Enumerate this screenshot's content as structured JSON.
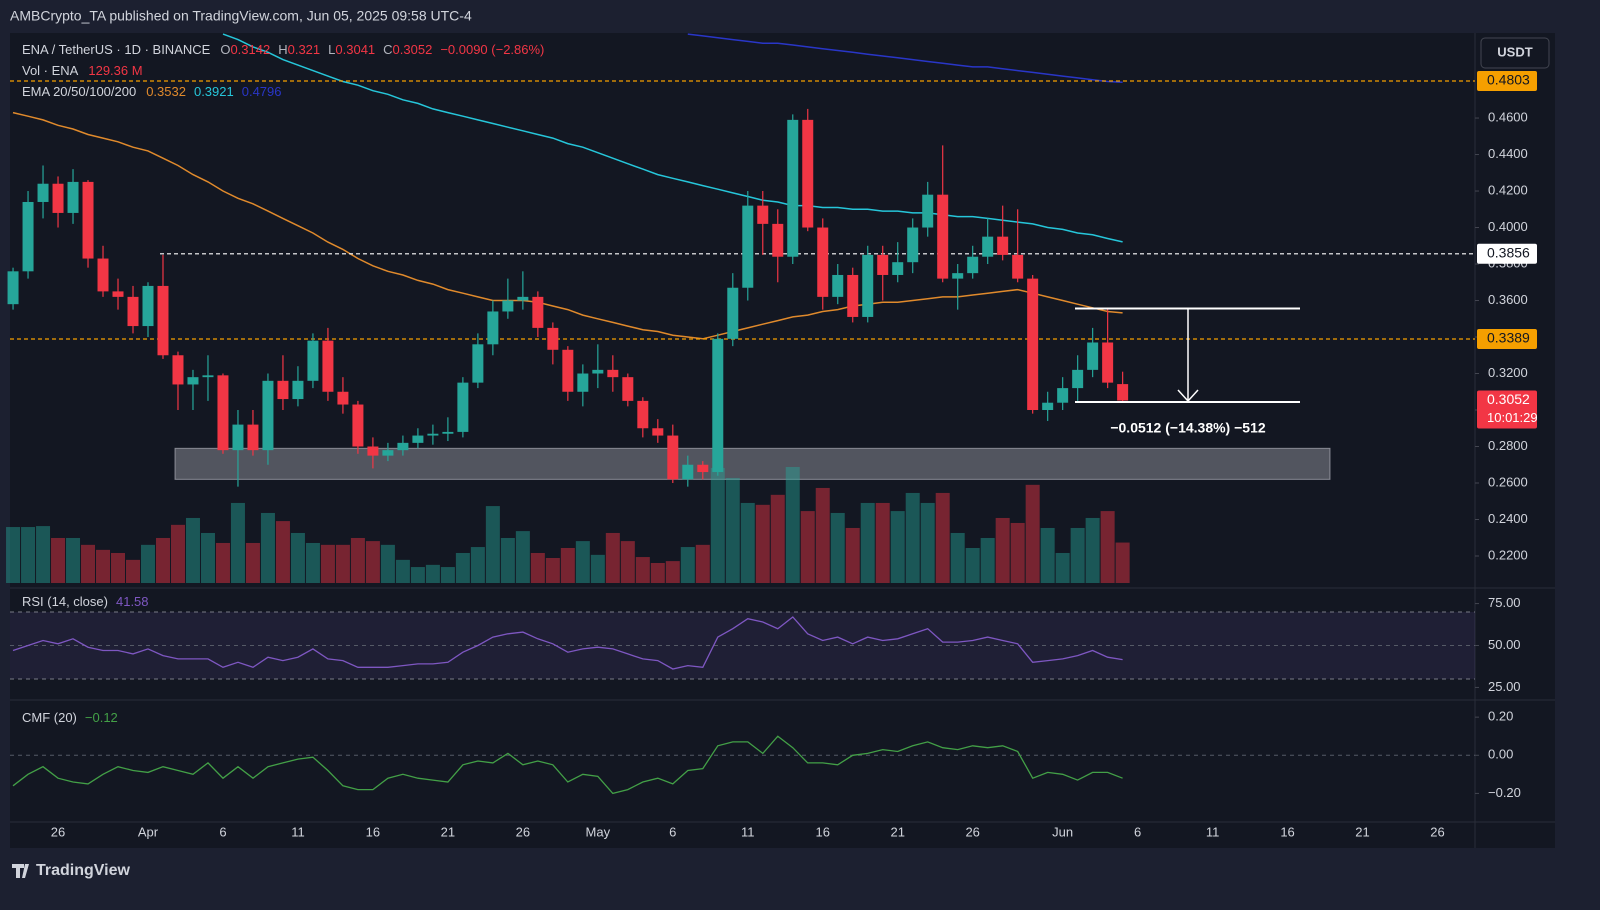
{
  "header": "AMBCrypto_TA published on TradingView.com, Jun 05, 2025 09:58 UTC-4",
  "currency_button": "USDT",
  "footer_logo": "TradingView",
  "chart_data": [
    {
      "type": "candlestick",
      "title": "ENA / TetherUS · 1D · BINANCE",
      "ohlc_labels": [
        "O",
        "H",
        "L",
        "C"
      ],
      "change_label": "−0.0090 (−2.86%)",
      "up_color": "#26a69a",
      "down_color": "#f23645",
      "candles": {
        "open": [
          0.358,
          0.376,
          0.414,
          0.424,
          0.408,
          0.425,
          0.383,
          0.365,
          0.362,
          0.346,
          0.368,
          0.33,
          0.314,
          0.318,
          0.319,
          0.278,
          0.292,
          0.278,
          0.316,
          0.306,
          0.316,
          0.338,
          0.31,
          0.303,
          0.28,
          0.275,
          0.278,
          0.282,
          0.286,
          0.287,
          0.288,
          0.315,
          0.336,
          0.354,
          0.36,
          0.362,
          0.345,
          0.333,
          0.31,
          0.32,
          0.322,
          0.318,
          0.305,
          0.29,
          0.286,
          0.262,
          0.27,
          0.266,
          0.339,
          0.367,
          0.412,
          0.402,
          0.384,
          0.459,
          0.4,
          0.362,
          0.374,
          0.351,
          0.385,
          0.374,
          0.381,
          0.4,
          0.418,
          0.372,
          0.375,
          0.384,
          0.395,
          0.385,
          0.372,
          0.3,
          0.304,
          0.312,
          0.322,
          0.337,
          0.3142
        ],
        "high": [
          0.378,
          0.42,
          0.434,
          0.428,
          0.432,
          0.426,
          0.39,
          0.372,
          0.368,
          0.37,
          0.385,
          0.332,
          0.322,
          0.33,
          0.32,
          0.3,
          0.3,
          0.32,
          0.33,
          0.324,
          0.342,
          0.345,
          0.318,
          0.305,
          0.285,
          0.282,
          0.286,
          0.29,
          0.292,
          0.296,
          0.318,
          0.342,
          0.36,
          0.372,
          0.376,
          0.365,
          0.348,
          0.335,
          0.325,
          0.336,
          0.33,
          0.32,
          0.307,
          0.295,
          0.292,
          0.275,
          0.272,
          0.342,
          0.375,
          0.42,
          0.42,
          0.41,
          0.462,
          0.465,
          0.405,
          0.38,
          0.378,
          0.39,
          0.39,
          0.392,
          0.405,
          0.425,
          0.445,
          0.38,
          0.39,
          0.405,
          0.412,
          0.41,
          0.374,
          0.31,
          0.318,
          0.33,
          0.345,
          0.356,
          0.321
        ],
        "low": [
          0.355,
          0.372,
          0.405,
          0.4,
          0.402,
          0.378,
          0.362,
          0.355,
          0.342,
          0.34,
          0.328,
          0.3,
          0.3,
          0.305,
          0.276,
          0.258,
          0.275,
          0.27,
          0.3,
          0.302,
          0.312,
          0.305,
          0.298,
          0.276,
          0.268,
          0.272,
          0.275,
          0.279,
          0.281,
          0.283,
          0.285,
          0.312,
          0.33,
          0.35,
          0.355,
          0.34,
          0.325,
          0.305,
          0.302,
          0.312,
          0.31,
          0.302,
          0.285,
          0.282,
          0.26,
          0.258,
          0.262,
          0.264,
          0.335,
          0.36,
          0.385,
          0.37,
          0.38,
          0.398,
          0.355,
          0.358,
          0.348,
          0.348,
          0.36,
          0.37,
          0.375,
          0.395,
          0.37,
          0.355,
          0.372,
          0.38,
          0.382,
          0.37,
          0.298,
          0.294,
          0.3,
          0.305,
          0.318,
          0.312,
          0.3041
        ],
        "close": [
          0.376,
          0.414,
          0.424,
          0.408,
          0.425,
          0.383,
          0.365,
          0.362,
          0.346,
          0.368,
          0.33,
          0.314,
          0.318,
          0.319,
          0.278,
          0.292,
          0.278,
          0.316,
          0.306,
          0.316,
          0.338,
          0.31,
          0.303,
          0.28,
          0.275,
          0.278,
          0.282,
          0.286,
          0.287,
          0.288,
          0.315,
          0.336,
          0.354,
          0.36,
          0.362,
          0.345,
          0.333,
          0.31,
          0.32,
          0.322,
          0.318,
          0.305,
          0.29,
          0.286,
          0.262,
          0.27,
          0.266,
          0.339,
          0.367,
          0.412,
          0.402,
          0.384,
          0.459,
          0.4,
          0.362,
          0.374,
          0.351,
          0.385,
          0.374,
          0.381,
          0.4,
          0.418,
          0.372,
          0.375,
          0.384,
          0.395,
          0.385,
          0.372,
          0.3,
          0.304,
          0.312,
          0.322,
          0.337,
          0.315,
          0.3052
        ]
      },
      "xlim": [
        -0.87,
        97.5
      ],
      "xticks": [
        {
          "value": 3,
          "label": "26"
        },
        {
          "value": 9,
          "label": "Apr"
        },
        {
          "value": 14,
          "label": "6"
        },
        {
          "value": 19,
          "label": "11"
        },
        {
          "value": 24,
          "label": "16"
        },
        {
          "value": 29,
          "label": "21"
        },
        {
          "value": 34,
          "label": "26"
        },
        {
          "value": 39,
          "label": "May"
        },
        {
          "value": 44,
          "label": "6"
        },
        {
          "value": 49,
          "label": "11"
        },
        {
          "value": 54,
          "label": "16"
        },
        {
          "value": 59,
          "label": "21"
        },
        {
          "value": 64,
          "label": "26"
        },
        {
          "value": 70,
          "label": "Jun"
        },
        {
          "value": 75,
          "label": "6"
        },
        {
          "value": 80,
          "label": "11"
        },
        {
          "value": 85,
          "label": "16"
        },
        {
          "value": 90,
          "label": "21"
        },
        {
          "value": 95,
          "label": "26"
        }
      ],
      "ylim": [
        0.2052,
        0.5066
      ],
      "yticks": [
        {
          "value": 0.22,
          "label": "0.2200"
        },
        {
          "value": 0.24,
          "label": "0.2400"
        },
        {
          "value": 0.26,
          "label": "0.2600"
        },
        {
          "value": 0.28,
          "label": "0.2800"
        },
        {
          "value": 0.3,
          "label": "0.3000"
        },
        {
          "value": 0.32,
          "label": "0.3200"
        },
        {
          "value": 0.34,
          "label": "0.3400"
        },
        {
          "value": 0.36,
          "label": "0.3600"
        },
        {
          "value": 0.38,
          "label": "0.3800"
        },
        {
          "value": 0.4,
          "label": "0.4000"
        },
        {
          "value": 0.42,
          "label": "0.4200"
        },
        {
          "value": 0.44,
          "label": "0.4400"
        },
        {
          "value": 0.46,
          "label": "0.4600"
        }
      ],
      "grid": false,
      "ema": {
        "name": "EMA 20/50/100/200",
        "series": [
          {
            "color": "#e08a2c",
            "values": [
              0.463,
              0.461,
              0.459,
              0.456,
              0.454,
              0.451,
              0.449,
              0.447,
              0.444,
              0.442,
              0.438,
              0.434,
              0.429,
              0.425,
              0.42,
              0.416,
              0.413,
              0.409,
              0.405,
              0.401,
              0.397,
              0.392,
              0.388,
              0.383,
              0.379,
              0.376,
              0.374,
              0.371,
              0.369,
              0.366,
              0.364,
              0.362,
              0.36,
              0.36,
              0.36,
              0.359,
              0.357,
              0.355,
              0.352,
              0.35,
              0.348,
              0.346,
              0.344,
              0.343,
              0.341,
              0.34,
              0.339,
              0.341,
              0.343,
              0.345,
              0.347,
              0.349,
              0.351,
              0.352,
              0.354,
              0.355,
              0.357,
              0.358,
              0.359,
              0.359,
              0.36,
              0.361,
              0.362,
              0.362,
              0.363,
              0.364,
              0.365,
              0.366,
              0.364,
              0.362,
              0.36,
              0.358,
              0.356,
              0.354,
              0.3532
            ]
          },
          {
            "color": "#26c6da",
            "values": [
              null,
              null,
              null,
              null,
              null,
              null,
              null,
              null,
              null,
              null,
              null,
              null,
              null,
              null,
              0.506,
              0.503,
              0.499,
              0.496,
              0.492,
              0.489,
              0.486,
              0.483,
              0.48,
              0.478,
              0.475,
              0.473,
              0.47,
              0.468,
              0.465,
              0.463,
              0.461,
              0.459,
              0.457,
              0.455,
              0.453,
              0.451,
              0.449,
              0.446,
              0.444,
              0.441,
              0.438,
              0.435,
              0.432,
              0.429,
              0.427,
              0.425,
              0.423,
              0.421,
              0.419,
              0.417,
              0.415,
              0.414,
              0.412,
              0.412,
              0.411,
              0.411,
              0.41,
              0.41,
              0.409,
              0.409,
              0.408,
              0.408,
              0.407,
              0.406,
              0.406,
              0.405,
              0.404,
              0.403,
              0.402,
              0.4,
              0.399,
              0.397,
              0.396,
              0.394,
              0.3921
            ]
          },
          {
            "color": "#2936c8",
            "values": [
              null,
              null,
              null,
              null,
              null,
              null,
              null,
              null,
              null,
              null,
              null,
              null,
              null,
              null,
              null,
              null,
              null,
              null,
              null,
              null,
              null,
              null,
              null,
              null,
              null,
              null,
              null,
              null,
              null,
              null,
              null,
              null,
              null,
              null,
              null,
              null,
              null,
              null,
              null,
              null,
              null,
              null,
              null,
              null,
              null,
              0.506,
              0.505,
              0.504,
              0.503,
              0.502,
              0.501,
              0.501,
              0.5,
              0.499,
              0.498,
              0.497,
              0.496,
              0.495,
              0.494,
              0.493,
              0.492,
              0.491,
              0.49,
              0.489,
              0.488,
              0.488,
              0.487,
              0.486,
              0.485,
              0.484,
              0.483,
              0.482,
              0.481,
              0.48,
              0.4796
            ]
          }
        ]
      },
      "volume": {
        "name": "Vol · ENA",
        "value_label": "129.36 M",
        "values": [
          179,
          179,
          182,
          144,
          144,
          122,
          106,
          96,
          74,
          122,
          144,
          186,
          208,
          160,
          128,
          256,
          128,
          224,
          198,
          160,
          128,
          122,
          122,
          144,
          134,
          122,
          74,
          51,
          58,
          51,
          96,
          115,
          246,
          144,
          166,
          96,
          80,
          112,
          134,
          90,
          160,
          134,
          83,
          64,
          70,
          115,
          122,
          368,
          336,
          256,
          250,
          282,
          371,
          230,
          304,
          224,
          176,
          256,
          256,
          230,
          288,
          256,
          288,
          160,
          112,
          144,
          208,
          192,
          314,
          176,
          96,
          176,
          208,
          230,
          129.36
        ]
      },
      "levels": [
        {
          "value": 0.4803,
          "color": "#f59f00"
        },
        {
          "value": 0.3856,
          "color": "#ffffff"
        },
        {
          "value": 0.3389,
          "color": "#f59f00"
        },
        {
          "value": 0.3052,
          "color": "#f23645",
          "countdown": "10:01:29"
        }
      ],
      "support_zone": [
        0.262,
        0.279
      ],
      "measure": {
        "from": 0.3556,
        "to": 0.3044,
        "label": "−0.0512 (−14.38%) −512"
      }
    },
    {
      "type": "line",
      "title": "RSI (14, close)",
      "color": "#7e57c2",
      "values": [
        47,
        50,
        53,
        51,
        54,
        49,
        47,
        47,
        45,
        48,
        44,
        42,
        42,
        42,
        37,
        40,
        37,
        43,
        41,
        43,
        48,
        42,
        41,
        37,
        37,
        37,
        38,
        39,
        39,
        40,
        46,
        50,
        55,
        57,
        58,
        54,
        51,
        46,
        48,
        49,
        48,
        45,
        42,
        41,
        36,
        38,
        37,
        55,
        60,
        66,
        64,
        60,
        67,
        57,
        53,
        55,
        51,
        55,
        53,
        54,
        57,
        60,
        52,
        52,
        53,
        55,
        53,
        51,
        40,
        41,
        42,
        44,
        47,
        43,
        41.58
      ],
      "ylim": [
        17.5,
        83.1
      ],
      "yticks": [
        {
          "value": 25,
          "label": "25.00"
        },
        {
          "value": 50,
          "label": "50.00"
        },
        {
          "value": 75,
          "label": "75.00"
        }
      ],
      "bands": [
        30,
        70
      ],
      "midline": 50
    },
    {
      "type": "line",
      "title": "CMF (20)",
      "color": "#43a047",
      "value_label": "−0.12",
      "values": [
        -0.16,
        -0.1,
        -0.06,
        -0.12,
        -0.14,
        -0.15,
        -0.1,
        -0.06,
        -0.08,
        -0.09,
        -0.06,
        -0.08,
        -0.1,
        -0.04,
        -0.12,
        -0.06,
        -0.12,
        -0.06,
        -0.04,
        -0.02,
        -0.01,
        -0.08,
        -0.16,
        -0.18,
        -0.18,
        -0.12,
        -0.1,
        -0.12,
        -0.13,
        -0.14,
        -0.05,
        -0.03,
        -0.04,
        0.01,
        -0.05,
        -0.03,
        -0.05,
        -0.14,
        -0.1,
        -0.11,
        -0.2,
        -0.18,
        -0.14,
        -0.12,
        -0.15,
        -0.08,
        -0.07,
        0.05,
        0.07,
        0.07,
        0.01,
        0.1,
        0.04,
        -0.04,
        -0.04,
        -0.05,
        0.0,
        0.01,
        0.03,
        0.02,
        0.05,
        0.07,
        0.04,
        0.03,
        0.05,
        0.04,
        0.05,
        0.02,
        -0.12,
        -0.09,
        -0.1,
        -0.13,
        -0.09,
        -0.09,
        -0.12
      ],
      "ylim": [
        -0.35,
        0.29
      ],
      "yticks": [
        {
          "value": -0.2,
          "label": "−0.20"
        },
        {
          "value": 0,
          "label": "0.00"
        },
        {
          "value": 0.2,
          "label": "0.20"
        }
      ],
      "midline": 0
    }
  ]
}
